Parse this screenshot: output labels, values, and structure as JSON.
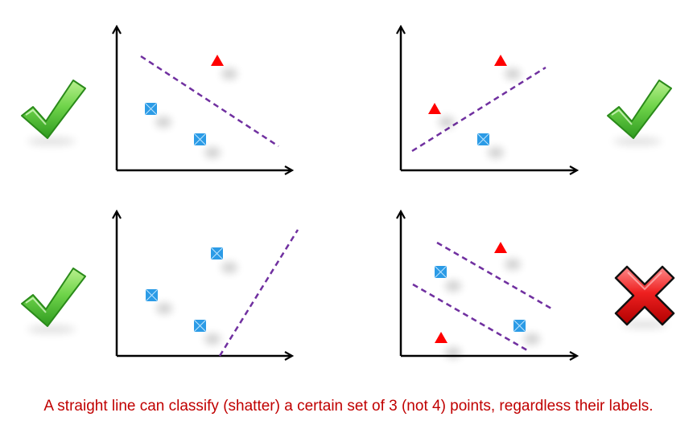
{
  "caption": "A straight line can classify (shatter) a certain set of 3 (not 4) points, regardless their labels.",
  "colors": {
    "caption": "#c00000",
    "separator": "#7030a0",
    "triangle": "#ff0000",
    "square": "#2b9be6",
    "check": "#5fcf3a",
    "cross": "#e81818",
    "axis": "#000000"
  },
  "icons": {
    "check": "check-icon",
    "cross": "cross-icon"
  },
  "panels": [
    {
      "id": "top-left",
      "result": "check"
    },
    {
      "id": "top-right",
      "result": "check"
    },
    {
      "id": "bottom-left",
      "result": "check"
    },
    {
      "id": "bottom-right",
      "result": "cross"
    }
  ]
}
